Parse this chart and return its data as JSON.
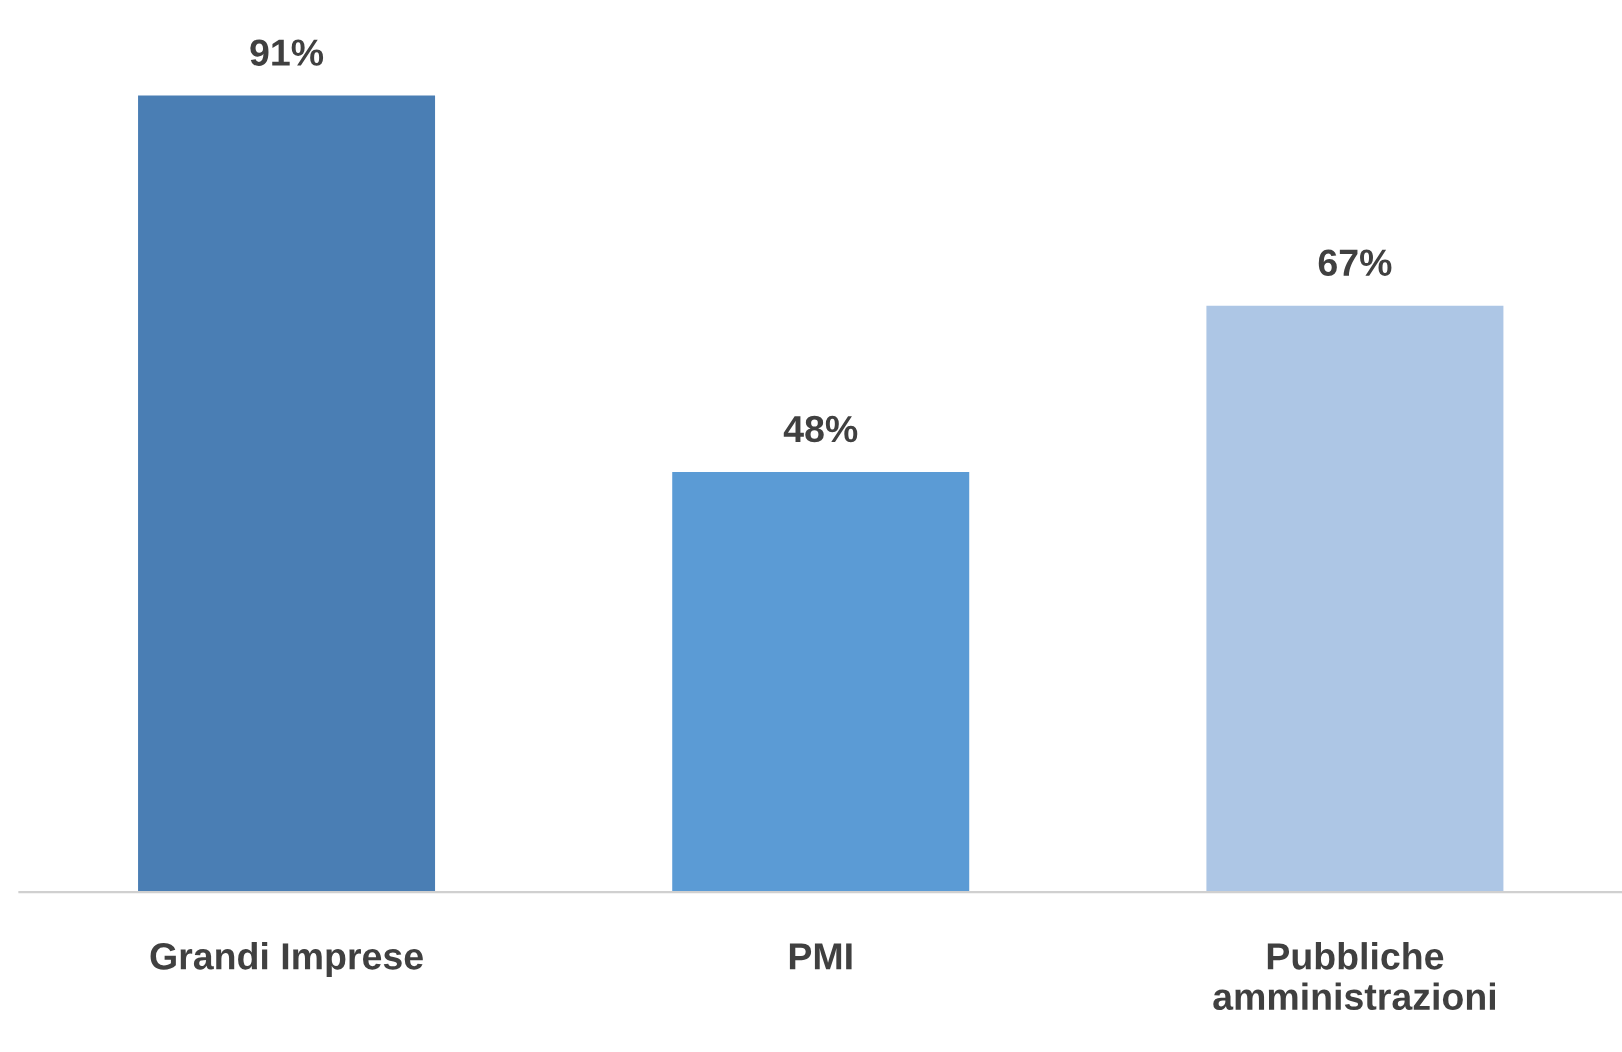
{
  "chart_data": {
    "type": "bar",
    "categories": [
      "Grandi Imprese",
      "PMI",
      "Pubbliche\namministrazioni"
    ],
    "values": [
      91,
      48,
      67
    ],
    "colors": [
      "#4a7eb4",
      "#5b9bd5",
      "#adc6e5"
    ],
    "value_labels": [
      "91%",
      "48%",
      "67%"
    ],
    "grid": false,
    "legend": false
  }
}
